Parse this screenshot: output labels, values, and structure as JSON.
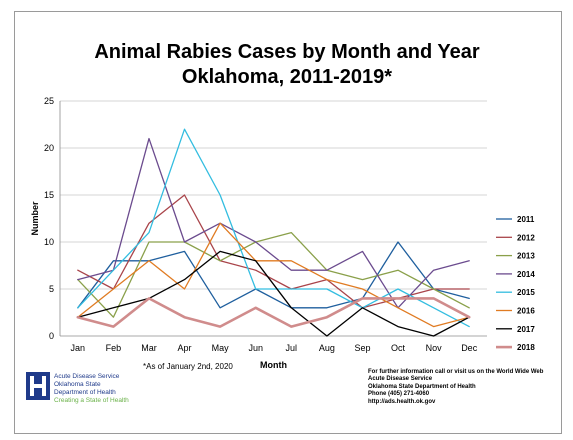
{
  "chart_data": {
    "type": "line",
    "title": "Animal Rabies Cases by Month and Year",
    "subtitle": "Oklahoma, 2011-2019*",
    "xlabel": "Month",
    "ylabel": "Number",
    "categories": [
      "Jan",
      "Feb",
      "Mar",
      "Apr",
      "May",
      "Jun",
      "Jul",
      "Aug",
      "Sep",
      "Oct",
      "Nov",
      "Dec"
    ],
    "ylim": [
      0,
      25
    ],
    "yticks": [
      0,
      5,
      10,
      15,
      20,
      25
    ],
    "grid": true,
    "legend_position": "right",
    "series": [
      {
        "name": "2011",
        "color": "#1f5f9e",
        "width": 1.3,
        "values": [
          3,
          8,
          8,
          9,
          3,
          5,
          3,
          3,
          4,
          10,
          5,
          4
        ]
      },
      {
        "name": "2012",
        "color": "#a9444a",
        "width": 1.3,
        "values": [
          7,
          5,
          12,
          15,
          8,
          7,
          5,
          6,
          3,
          4,
          5,
          5
        ]
      },
      {
        "name": "2013",
        "color": "#8aa04a",
        "width": 1.3,
        "values": [
          6,
          2,
          10,
          10,
          8,
          10,
          11,
          7,
          6,
          7,
          5,
          3
        ]
      },
      {
        "name": "2014",
        "color": "#6b4b8e",
        "width": 1.3,
        "values": [
          6,
          7,
          21,
          10,
          12,
          10,
          7,
          7,
          9,
          3,
          7,
          8
        ]
      },
      {
        "name": "2015",
        "color": "#33bde0",
        "width": 1.3,
        "values": [
          3,
          7,
          11,
          22,
          15,
          5,
          5,
          5,
          3,
          5,
          3,
          1
        ]
      },
      {
        "name": "2016",
        "color": "#e07b22",
        "width": 1.3,
        "values": [
          2,
          5,
          8,
          5,
          12,
          8,
          8,
          6,
          5,
          3,
          1,
          2
        ]
      },
      {
        "name": "2017",
        "color": "#000000",
        "width": 1.3,
        "values": [
          2,
          3,
          4,
          6,
          9,
          8,
          3,
          0,
          3,
          1,
          0,
          2
        ]
      },
      {
        "name": "2018",
        "color": "#d08c8c",
        "width": 2.6,
        "values": [
          2,
          1,
          4,
          2,
          1,
          3,
          1,
          2,
          4,
          4,
          4,
          2
        ]
      }
    ]
  },
  "footnote": "*As of January 2nd, 2020",
  "logo": {
    "line1": "Acute Disease Service",
    "line2": "Oklahoma State",
    "line3": "Department of Health",
    "line4": "Creating a State of Health"
  },
  "contact": {
    "line1": "For further information call or visit us on the World Wide Web",
    "line2": "Acute Disease Service",
    "line3": "Oklahoma State Department of Health",
    "line4": "Phone (405) 271-4060",
    "line5": "http://ads.health.ok.gov"
  }
}
